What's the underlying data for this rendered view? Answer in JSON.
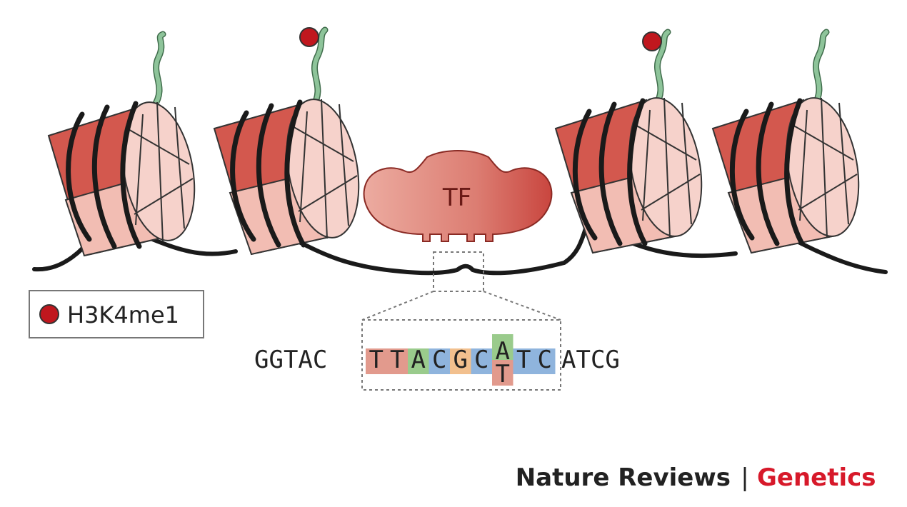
{
  "diagram": {
    "tf_label": "TF",
    "legend": {
      "label": "H3K4me1",
      "marker_color": "#c0171e"
    },
    "sequence": {
      "left_flank": "GGTAC",
      "motif": [
        {
          "base": "T",
          "color": "#e29a8d"
        },
        {
          "base": "T",
          "color": "#e29a8d"
        },
        {
          "base": "A",
          "color": "#9acb8c"
        },
        {
          "base": "C",
          "color": "#8fb4dd"
        },
        {
          "base": "G",
          "color": "#f2c08e"
        },
        {
          "base": "C",
          "color": "#8fb4dd"
        },
        {
          "base": "A",
          "color": "#9acb8c"
        },
        {
          "base": "T",
          "color": "#8fb4dd"
        },
        {
          "base": "C",
          "color": "#8fb4dd"
        }
      ],
      "variant_base": "T",
      "variant_color": "#e29a8d",
      "right_flank": "ATCG"
    }
  },
  "footer": {
    "journal": "Nature Reviews",
    "separator": "|",
    "section": "Genetics",
    "section_color": "#d7192a"
  },
  "colors": {
    "nucleosome_dark": "#d3584e",
    "nucleosome_mid": "#e7958a",
    "nucleosome_light": "#f6d2cb",
    "histone_tail": "#8ec49a",
    "dna": "#1a1a1a"
  }
}
